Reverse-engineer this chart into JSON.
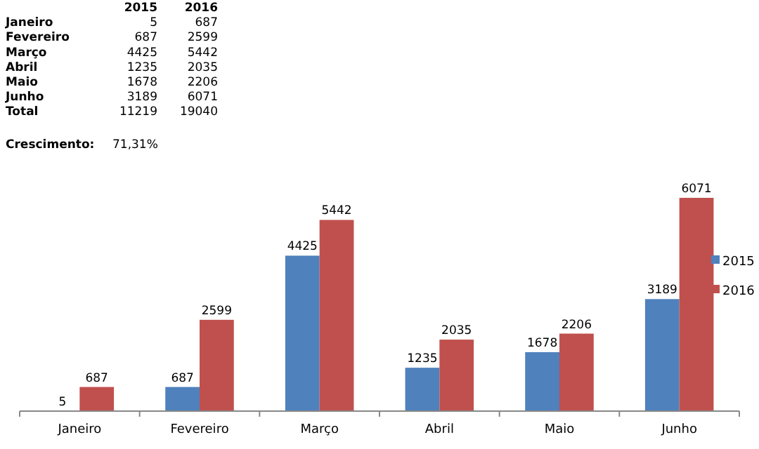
{
  "chart_data": {
    "type": "bar",
    "categories": [
      "Janeiro",
      "Fevereiro",
      "Março",
      "Abril",
      "Maio",
      "Junho"
    ],
    "series": [
      {
        "name": "2015",
        "color": "#4f81bd",
        "values": [
          5,
          687,
          4425,
          1235,
          1678,
          3189
        ]
      },
      {
        "name": "2016",
        "color": "#c0504d",
        "values": [
          687,
          2599,
          5442,
          2035,
          2206,
          6071
        ]
      }
    ],
    "data_labels": true,
    "legend": "right",
    "annotations": [
      "5",
      "687",
      "687",
      "2599",
      "4425",
      "5442",
      "1235",
      "2035",
      "1678",
      "2206",
      "3189",
      "6071",
      "Total",
      "11219",
      "19040",
      "Crescimento:",
      "71,31%"
    ]
  }
}
